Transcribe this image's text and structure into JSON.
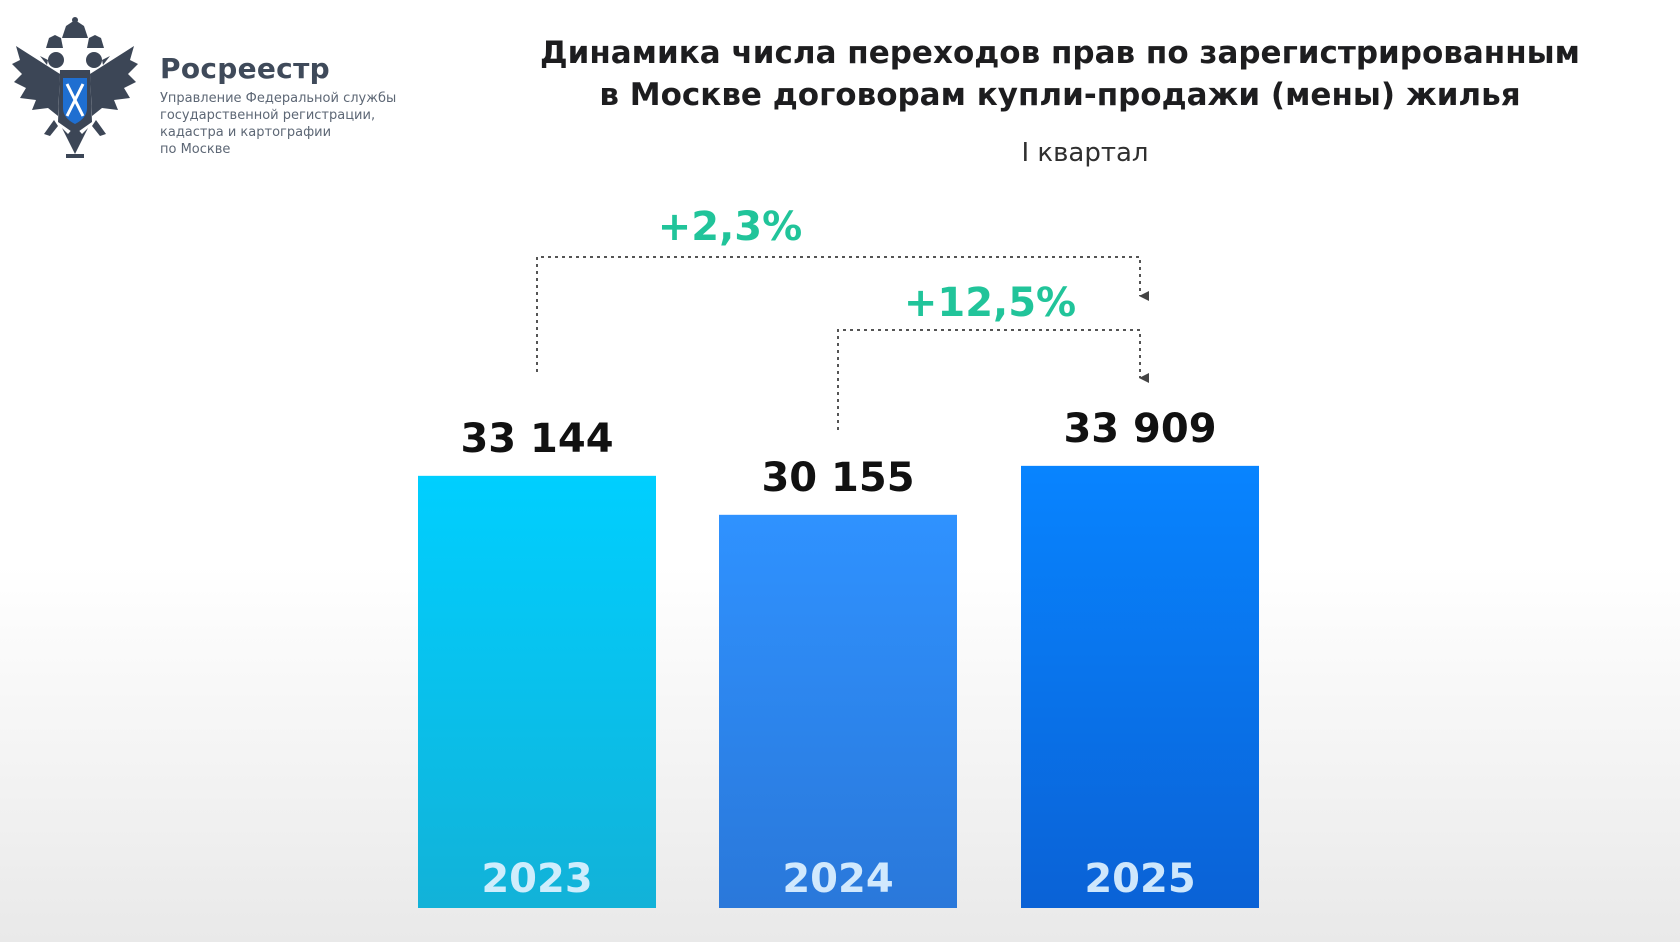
{
  "brand": {
    "name": "Росреестр",
    "desc_lines": [
      "Управление Федеральной службы",
      "государственной регистрации,",
      "кадастра и картографии",
      "по Москве"
    ],
    "emblem_icon": "double-headed-eagle-emblem"
  },
  "chart_data": {
    "type": "bar",
    "title_lines": [
      "Динамика числа переходов прав по зарегистрированным",
      "в Москве договорам купли-продажи (мены) жилья"
    ],
    "subtitle": "I квартал",
    "categories": [
      "2023",
      "2024",
      "2025"
    ],
    "values": [
      33144,
      30155,
      33909
    ],
    "value_labels": [
      "33 144",
      "30 155",
      "33 909"
    ],
    "bar_colors": [
      [
        "#00cfff",
        "#12b2d8"
      ],
      [
        "#2f92ff",
        "#2a78da"
      ],
      [
        "#0884ff",
        "#0a62d6"
      ]
    ],
    "annotations": [
      {
        "from": "2023",
        "to": "2025",
        "label": "+2,3%"
      },
      {
        "from": "2024",
        "to": "2025",
        "label": "+12,5%"
      }
    ],
    "annotation_color": "#21c49a",
    "axis_label_color": "#dff2ff",
    "ylim": [
      0,
      38500
    ],
    "grid": false,
    "legend": "none"
  }
}
